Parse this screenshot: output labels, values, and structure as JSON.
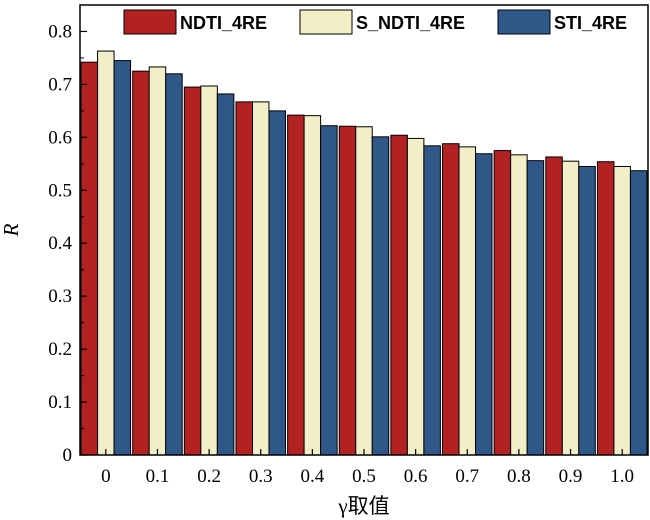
{
  "chart_data": {
    "type": "bar",
    "xlabel": "γ取值",
    "ylabel": "R",
    "categories": [
      "0",
      "0.1",
      "0.2",
      "0.3",
      "0.4",
      "0.5",
      "0.6",
      "0.7",
      "0.8",
      "0.9",
      "1.0"
    ],
    "ylim": [
      0,
      0.85
    ],
    "yticks": [
      "0",
      "0.1",
      "0.2",
      "0.3",
      "0.4",
      "0.5",
      "0.6",
      "0.7",
      "0.8"
    ],
    "legend_position": "top",
    "grid": false,
    "series": [
      {
        "name": "NDTI_4RE",
        "color": "#b22222",
        "values": [
          0.742,
          0.725,
          0.695,
          0.667,
          0.642,
          0.621,
          0.604,
          0.588,
          0.575,
          0.563,
          0.554
        ]
      },
      {
        "name": "S_NDTI_4RE",
        "color": "#f2efc8",
        "values": [
          0.763,
          0.733,
          0.697,
          0.667,
          0.641,
          0.62,
          0.598,
          0.582,
          0.567,
          0.555,
          0.545
        ]
      },
      {
        "name": "STI_4RE",
        "color": "#2f5788",
        "values": [
          0.745,
          0.72,
          0.682,
          0.65,
          0.622,
          0.601,
          0.584,
          0.569,
          0.556,
          0.545,
          0.537
        ]
      }
    ]
  }
}
